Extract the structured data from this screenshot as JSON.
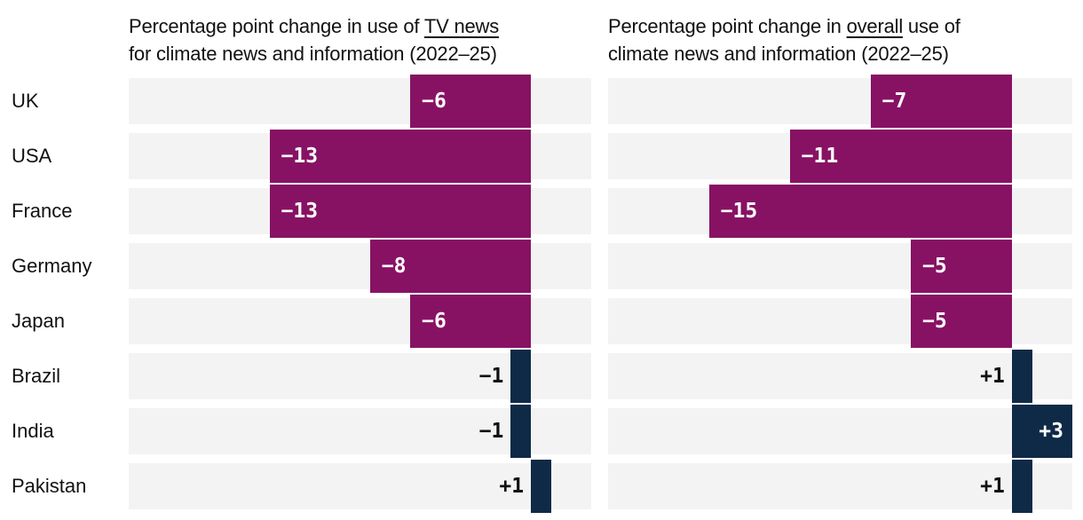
{
  "colors": {
    "decline_bar": "#871264",
    "growth_group_bar": "#0e2a47",
    "row_track": "#f3f3f3",
    "text_dark": "#111111",
    "text_light": "#ffffff",
    "background": "#ffffff"
  },
  "countries": [
    "UK",
    "USA",
    "France",
    "Germany",
    "Japan",
    "Brazil",
    "India",
    "Pakistan"
  ],
  "chart_data": [
    {
      "type": "bar",
      "orientation": "horizontal",
      "title": "Percentage point change in use of TV news for climate news and information (2022–25)",
      "title_lines": [
        "Percentage point change in use of TV news",
        "for climate news and information (2022–25)"
      ],
      "underlined_phrase": "TV news",
      "categories": [
        "UK",
        "USA",
        "France",
        "Germany",
        "Japan",
        "Brazil",
        "India",
        "Pakistan"
      ],
      "values": [
        -6,
        -13,
        -13,
        -8,
        -6,
        -1,
        -1,
        1
      ],
      "value_labels": [
        "−6",
        "−13",
        "−13",
        "−8",
        "−6",
        "−1",
        "−1",
        "+1"
      ],
      "bar_colors": [
        "#871264",
        "#871264",
        "#871264",
        "#871264",
        "#871264",
        "#0e2a47",
        "#0e2a47",
        "#0e2a47"
      ],
      "xlim": [
        -20,
        3
      ],
      "grid": false,
      "legend": false
    },
    {
      "type": "bar",
      "orientation": "horizontal",
      "title": "Percentage point change in overall use of climate news and information (2022–25)",
      "title_lines": [
        "Percentage point change in overall use of",
        "climate news and information (2022–25)"
      ],
      "underlined_phrase": "overall",
      "categories": [
        "UK",
        "USA",
        "France",
        "Germany",
        "Japan",
        "Brazil",
        "India",
        "Pakistan"
      ],
      "values": [
        -7,
        -11,
        -15,
        -5,
        -5,
        1,
        3,
        1
      ],
      "value_labels": [
        "−7",
        "−11",
        "−15",
        "−5",
        "−5",
        "+1",
        "+3",
        "+1"
      ],
      "bar_colors": [
        "#871264",
        "#871264",
        "#871264",
        "#871264",
        "#871264",
        "#0e2a47",
        "#0e2a47",
        "#0e2a47"
      ],
      "xlim": [
        -20,
        3
      ],
      "grid": false,
      "legend": false
    }
  ]
}
